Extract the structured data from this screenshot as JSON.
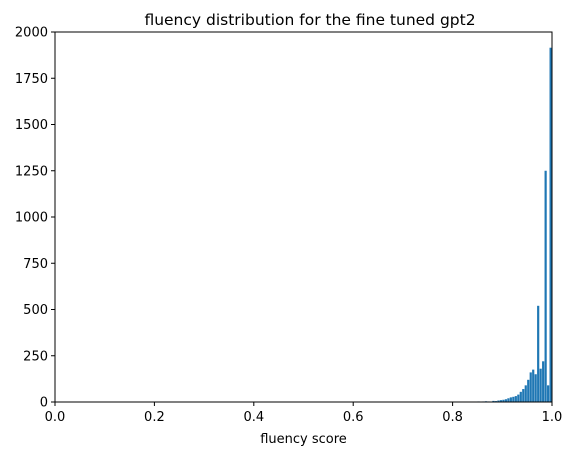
{
  "chart_data": {
    "type": "bar",
    "title": "fluency distribution for the fine tuned gpt2",
    "xlabel": "fluency score",
    "ylabel": "",
    "xlim": [
      0.0,
      1.0
    ],
    "ylim": [
      0,
      2000
    ],
    "xticks": [
      "0.0",
      "0.2",
      "0.4",
      "0.6",
      "0.8",
      "1.0"
    ],
    "yticks": [
      "0",
      "250",
      "500",
      "750",
      "1000",
      "1250",
      "1500",
      "1750",
      "2000"
    ],
    "bar_color": "#1f77b4",
    "bin_width": 0.005,
    "x": [
      0.85,
      0.855,
      0.86,
      0.865,
      0.87,
      0.875,
      0.88,
      0.885,
      0.89,
      0.895,
      0.9,
      0.905,
      0.91,
      0.915,
      0.92,
      0.925,
      0.93,
      0.935,
      0.94,
      0.945,
      0.95,
      0.955,
      0.96,
      0.965,
      0.97,
      0.975,
      0.98,
      0.985,
      0.99,
      0.995
    ],
    "values": [
      3,
      2,
      3,
      4,
      3,
      2,
      6,
      5,
      8,
      10,
      12,
      15,
      20,
      25,
      28,
      32,
      40,
      55,
      70,
      90,
      120,
      160,
      175,
      150,
      520,
      180,
      220,
      1250,
      90,
      1915
    ]
  }
}
